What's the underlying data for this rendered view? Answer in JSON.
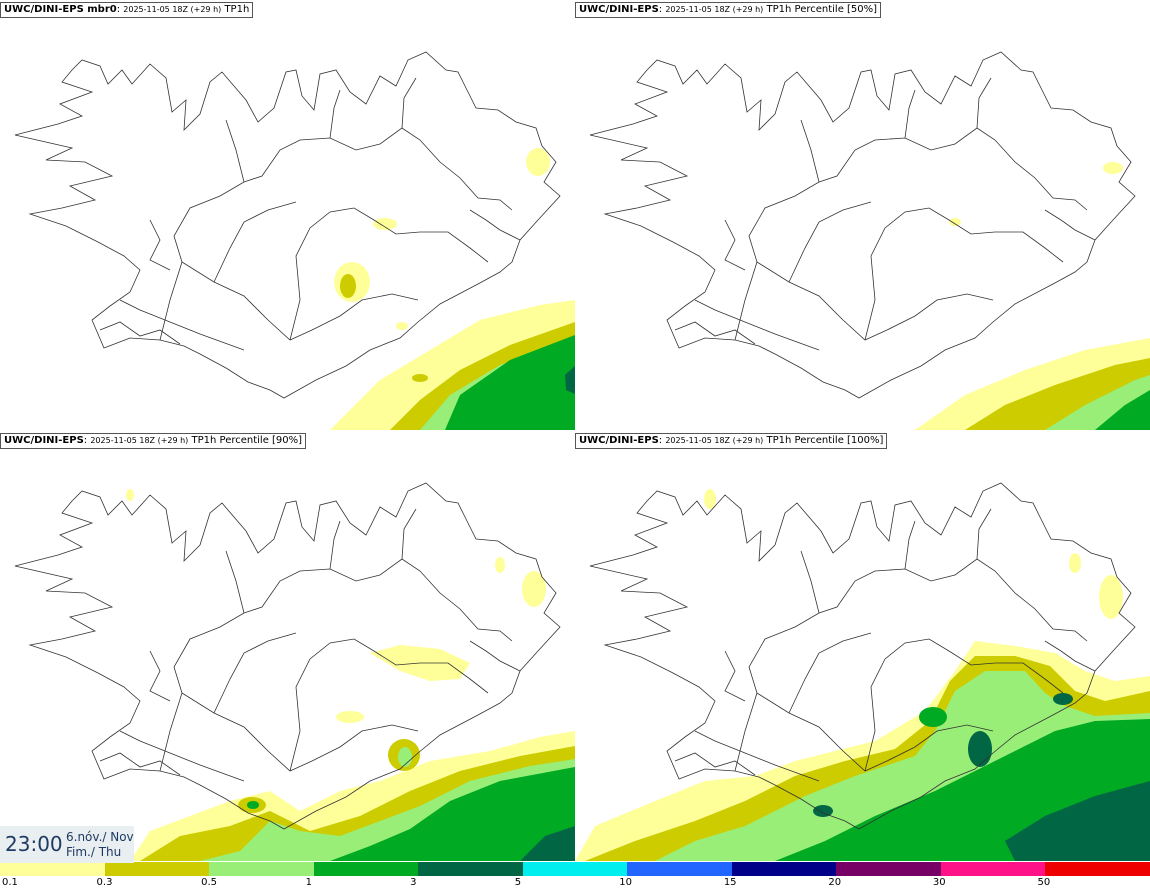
{
  "panels": [
    {
      "model": "UWC/DINI-EPS mbr0",
      "run": "2025-11-05 18Z (+29 h)",
      "field": "TP1h"
    },
    {
      "model": "UWC/DINI-EPS",
      "run": "2025-11-05 18Z (+29 h)",
      "field": "TP1h Percentile [50%]"
    },
    {
      "model": "UWC/DINI-EPS",
      "run": "2025-11-05 18Z (+29 h)",
      "field": "TP1h Percentile [90%]"
    },
    {
      "model": "UWC/DINI-EPS",
      "run": "2025-11-05 18Z (+29 h)",
      "field": "TP1h Percentile [100%]"
    }
  ],
  "valid_time": {
    "time": "23:00",
    "date_line1": "6.nóv./ Nov",
    "date_line2": "Fim./ Thu"
  },
  "colorbar": {
    "colors": [
      "#ffff99",
      "#cccc00",
      "#99ee77",
      "#00aa22",
      "#006644",
      "#00eeee",
      "#2266ff",
      "#000088",
      "#770066",
      "#ff1188",
      "#ee0000"
    ],
    "ticks": [
      "0.1",
      "0.3",
      "0.5",
      "1",
      "3",
      "5",
      "10",
      "15",
      "20",
      "30",
      "50"
    ]
  },
  "legend": {
    "c0": "#ffff99",
    "c1": "#cccc00",
    "c2": "#99ee77",
    "c3": "#00aa22",
    "c4": "#006644"
  }
}
